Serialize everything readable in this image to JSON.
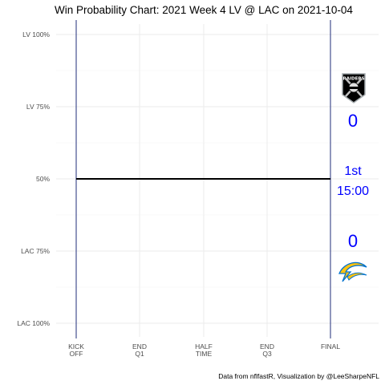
{
  "chart_data": {
    "type": "line",
    "title": "Win Probability Chart: 2021 Week 4 LV @ LAC on 2021-10-04",
    "caption": "Data from nflfastR, Visualization by @LeeSharpeNFL",
    "y_tick_labels": [
      "LV 100%",
      "LV 75%",
      "50%",
      "LAC 75%",
      "LAC 100%"
    ],
    "x_tick_labels": [
      [
        "KICK",
        "OFF"
      ],
      [
        "END",
        "Q1"
      ],
      [
        "HALF",
        "TIME"
      ],
      [
        "END",
        "Q3"
      ],
      [
        "FINAL"
      ]
    ],
    "grid": true,
    "series": [
      {
        "x": [
          0,
          60
        ],
        "y": [
          0.5,
          0.5
        ],
        "color": "#000000"
      }
    ],
    "markers": {
      "kickoff_x": 0,
      "final_x": 60,
      "color": "#1f2d7a"
    },
    "scoreboard": {
      "away_team": "LV",
      "away_score": "0",
      "home_team": "LAC",
      "home_score": "0",
      "quarter": "1st",
      "clock": "15:00",
      "color": "#0000ff"
    },
    "logos": {
      "away": "raiders-logo",
      "home": "chargers-logo"
    }
  }
}
